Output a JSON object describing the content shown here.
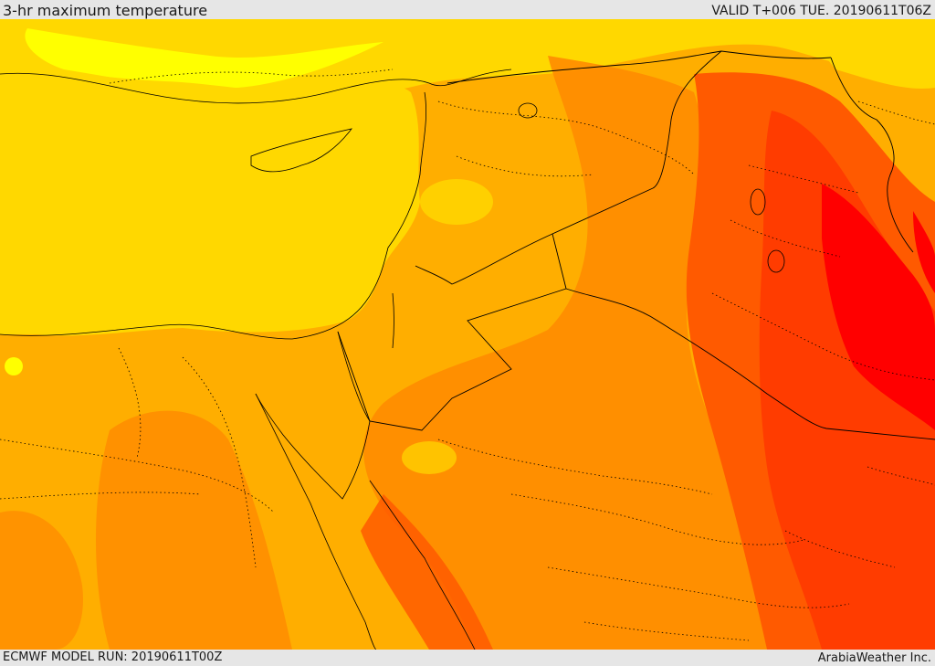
{
  "header": {
    "title": "3-hr maximum temperature",
    "valid": "VALID T+006 TUE. 20190611T06Z"
  },
  "footer": {
    "model_run": "ECMWF MODEL RUN: 20190611T00Z",
    "credit": "ArabiaWeather Inc."
  },
  "map": {
    "palette": {
      "yellow": "#ffff00",
      "gold": "#ffd800",
      "light_orange": "#ffae00",
      "orange": "#ff8c00",
      "dark_orange": "#ff5a00",
      "red_orange": "#ff3c00",
      "red": "#ff0000",
      "border_color": "#000000"
    },
    "icons": [
      "country-border",
      "region-border",
      "coastline"
    ]
  }
}
